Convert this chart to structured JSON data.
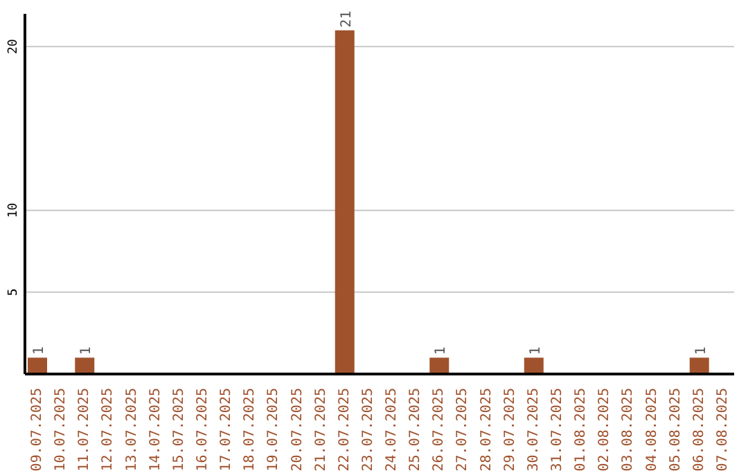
{
  "chart_data": {
    "type": "bar",
    "categories": [
      "09.07.2025",
      "10.07.2025",
      "11.07.2025",
      "12.07.2025",
      "13.07.2025",
      "14.07.2025",
      "15.07.2025",
      "16.07.2025",
      "17.07.2025",
      "18.07.2025",
      "19.07.2025",
      "20.07.2025",
      "21.07.2025",
      "22.07.2025",
      "23.07.2025",
      "24.07.2025",
      "25.07.2025",
      "26.07.2025",
      "27.07.2025",
      "28.07.2025",
      "29.07.2025",
      "30.07.2025",
      "31.07.2025",
      "01.08.2025",
      "02.08.2025",
      "03.08.2025",
      "04.08.2025",
      "05.08.2025",
      "06.08.2025",
      "07.08.2025"
    ],
    "values": [
      1,
      0,
      1,
      0,
      0,
      0,
      0,
      0,
      0,
      0,
      0,
      0,
      0,
      21,
      0,
      0,
      0,
      1,
      0,
      0,
      0,
      1,
      0,
      0,
      0,
      0,
      0,
      0,
      1,
      0
    ],
    "value_labels": [
      "1",
      null,
      "1",
      null,
      null,
      null,
      null,
      null,
      null,
      null,
      null,
      null,
      null,
      "21",
      null,
      null,
      null,
      "1",
      null,
      null,
      null,
      "1",
      null,
      null,
      null,
      null,
      null,
      null,
      "1",
      null
    ],
    "color": "#a0522d",
    "ylim": [
      0,
      22
    ],
    "yticks": [
      5,
      10,
      20
    ],
    "grid": "y"
  }
}
